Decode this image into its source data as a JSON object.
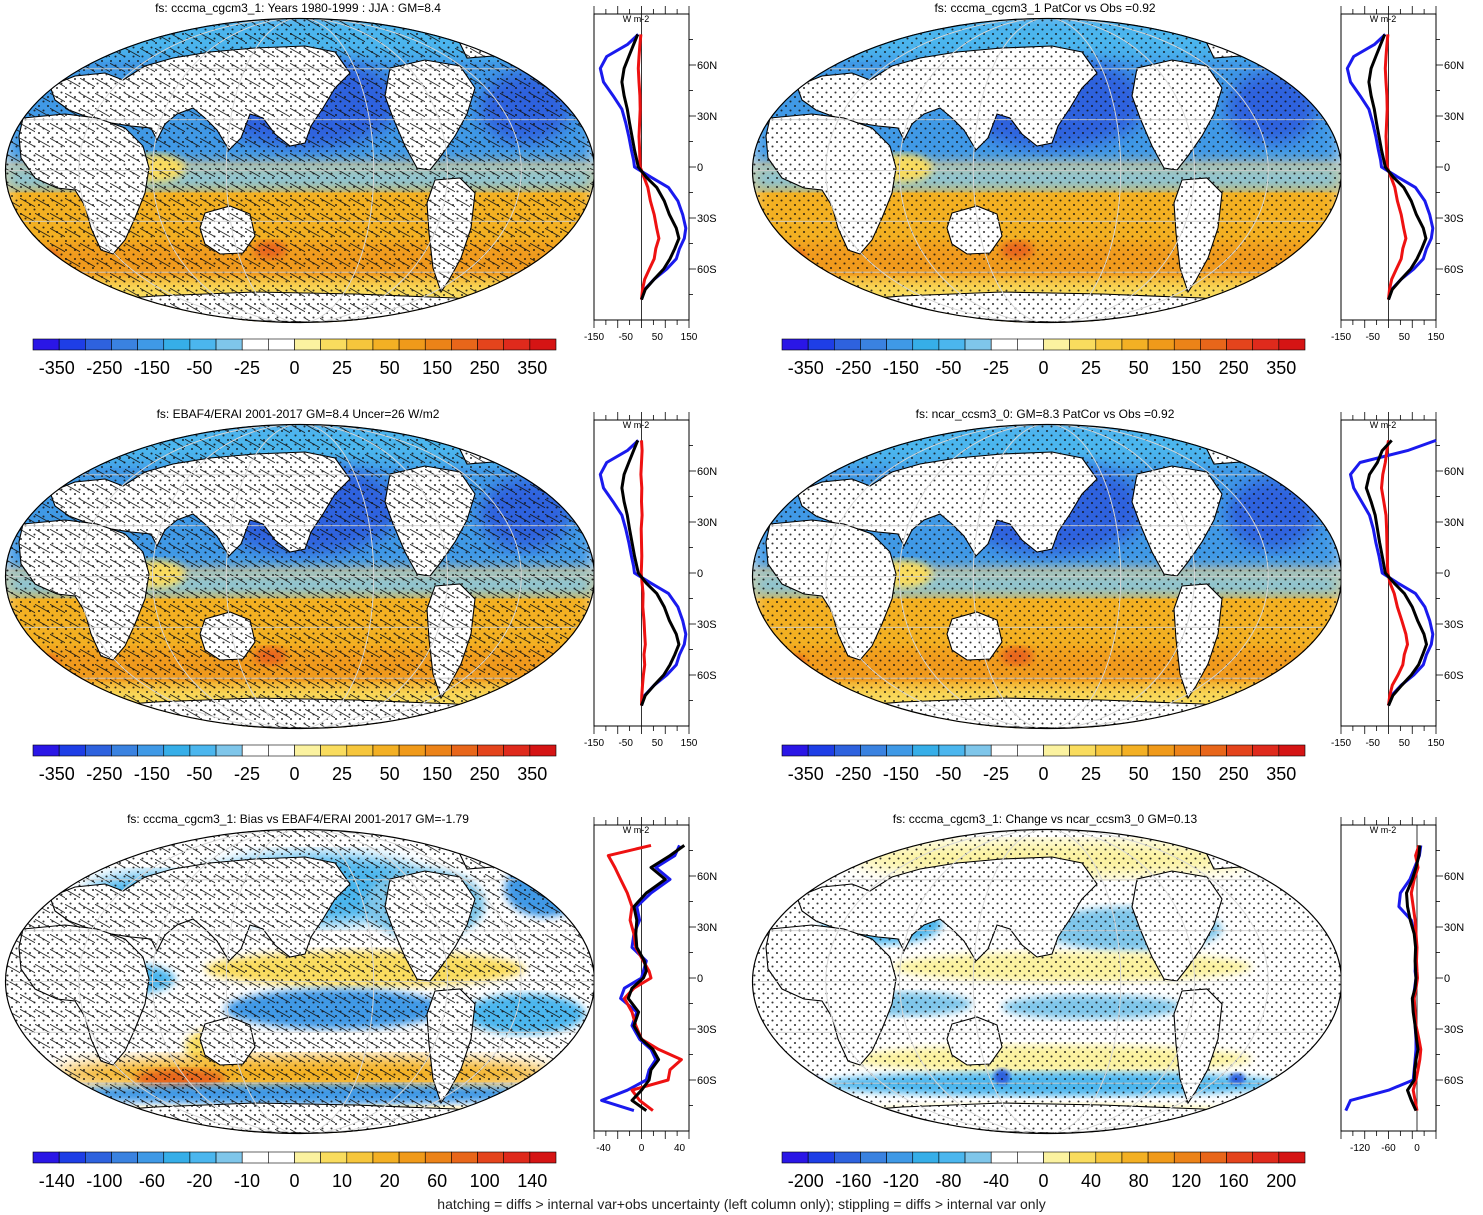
{
  "footer": "hatching = diffs > internal var+obs uncertainty (left column only); stippling = diffs > internal var only",
  "colors": {
    "zonal_obs": "#1a1aee",
    "zonal_model": "#000000",
    "zonal_diff": "#ee1111",
    "land_outline": "#000000"
  },
  "colorbars": {
    "standard": {
      "colors": [
        "#2a16e6",
        "#1e3ee6",
        "#2e62de",
        "#3a82e0",
        "#3f99e6",
        "#36aee8",
        "#4bb6ee",
        "#7fc6ea",
        "#ffffff",
        "#ffffff",
        "#fbf2a0",
        "#f9dc5e",
        "#f6c63c",
        "#f3b024",
        "#f09a1a",
        "#ec8318",
        "#e8661a",
        "#e4441c",
        "#df2a1c",
        "#d51414"
      ],
      "labels": [
        "-350",
        "-250",
        "-150",
        "-50",
        "-25",
        "0",
        "25",
        "50",
        "150",
        "250",
        "350"
      ]
    },
    "bias": {
      "colors": [
        "#2a16e6",
        "#1e3ee6",
        "#2e62de",
        "#3a82e0",
        "#3f99e6",
        "#36aee8",
        "#4bb6ee",
        "#7fc6ea",
        "#ffffff",
        "#ffffff",
        "#fbf2a0",
        "#f9dc5e",
        "#f6c63c",
        "#f3b024",
        "#f09a1a",
        "#ec8318",
        "#e8661a",
        "#e4441c",
        "#df2a1c",
        "#d51414"
      ],
      "labels": [
        "-140",
        "-100",
        "-60",
        "-20",
        "-10",
        "0",
        "10",
        "20",
        "60",
        "100",
        "140"
      ]
    },
    "change": {
      "colors": [
        "#2a16e6",
        "#1e3ee6",
        "#2e62de",
        "#3a82e0",
        "#3f99e6",
        "#36aee8",
        "#4bb6ee",
        "#7fc6ea",
        "#ffffff",
        "#ffffff",
        "#fbf2a0",
        "#f9dc5e",
        "#f6c63c",
        "#f3b024",
        "#f09a1a",
        "#ec8318",
        "#e8661a",
        "#e4441c",
        "#df2a1c",
        "#d51414"
      ],
      "labels": [
        "-200",
        "-160",
        "-120",
        "-80",
        "-40",
        "0",
        "40",
        "80",
        "120",
        "160",
        "200"
      ]
    }
  },
  "panels": [
    {
      "id": "model-climatology",
      "title": "fs: cccma_cgcm3_1: Years 1980-1999 : JJA : GM=8.4",
      "pattern": "climatology",
      "hatched": true,
      "colorbar": "standard",
      "zonal": {
        "unit": "W m-2",
        "lat_labels": [
          "60N",
          "30N",
          "0",
          "30S",
          "60S"
        ],
        "lat_values": [
          60,
          30,
          0,
          -30,
          -60
        ],
        "x_range": [
          -150,
          150
        ],
        "x_labels": [
          "-150",
          "-50",
          "50",
          "150"
        ],
        "x_label_values": [
          -150,
          -50,
          50,
          150
        ],
        "lat": [
          78,
          72,
          65,
          58,
          50,
          42,
          34,
          26,
          18,
          10,
          4,
          0,
          -6,
          -12,
          -20,
          -28,
          -36,
          -42,
          -48,
          -54,
          -60,
          -66,
          -72,
          -78
        ],
        "obs": [
          -10,
          -45,
          -110,
          -130,
          -120,
          -90,
          -62,
          -50,
          -40,
          -32,
          -25,
          -22,
          30,
          85,
          115,
          130,
          140,
          135,
          120,
          110,
          80,
          40,
          10,
          0
        ],
        "model": [
          -12,
          -25,
          -40,
          -55,
          -62,
          -55,
          -45,
          -38,
          -30,
          -22,
          -15,
          -10,
          15,
          48,
          72,
          88,
          110,
          118,
          105,
          90,
          70,
          40,
          12,
          0
        ],
        "diff": [
          -2,
          -5,
          -8,
          -10,
          -8,
          -5,
          -4,
          -6,
          -8,
          -6,
          -5,
          -4,
          8,
          20,
          28,
          40,
          48,
          55,
          45,
          40,
          25,
          10,
          3,
          0
        ]
      }
    },
    {
      "id": "model-patcor",
      "title": "fs: cccma_cgcm3_1 PatCor vs Obs =0.92",
      "pattern": "climatology",
      "hatched": false,
      "colorbar": "standard",
      "zonal": {
        "unit": "W m-2",
        "lat_labels": [
          "60N",
          "30N",
          "0",
          "30S",
          "60S"
        ],
        "lat_values": [
          60,
          30,
          0,
          -30,
          -60
        ],
        "x_range": [
          -150,
          150
        ],
        "x_labels": [
          "-150",
          "-50",
          "50",
          "150"
        ],
        "x_label_values": [
          -150,
          -50,
          50,
          150
        ],
        "lat": [
          78,
          72,
          65,
          58,
          50,
          42,
          34,
          26,
          18,
          10,
          4,
          0,
          -6,
          -12,
          -20,
          -28,
          -36,
          -42,
          -48,
          -54,
          -60,
          -66,
          -72,
          -78
        ],
        "obs": [
          -10,
          -45,
          -110,
          -130,
          -120,
          -90,
          -62,
          -50,
          -40,
          -32,
          -25,
          -22,
          30,
          85,
          115,
          130,
          140,
          135,
          120,
          110,
          80,
          40,
          10,
          0
        ],
        "model": [
          -12,
          -25,
          -40,
          -55,
          -62,
          -55,
          -45,
          -38,
          -30,
          -22,
          -15,
          -10,
          15,
          48,
          72,
          88,
          110,
          118,
          105,
          90,
          70,
          40,
          12,
          0
        ],
        "diff": [
          -2,
          -5,
          -8,
          -10,
          -8,
          -5,
          -4,
          -6,
          -8,
          -6,
          -5,
          -4,
          8,
          20,
          28,
          40,
          48,
          55,
          45,
          40,
          25,
          10,
          3,
          0
        ]
      }
    },
    {
      "id": "obs-climatology",
      "title": "fs: EBAF4/ERAI 2001-2017 GM=8.4 Uncer=26 W/m2",
      "pattern": "climatology",
      "hatched": true,
      "colorbar": "standard",
      "zonal": {
        "unit": "W m-2",
        "lat_labels": [
          "60N",
          "30N",
          "0",
          "30S",
          "60S"
        ],
        "lat_values": [
          60,
          30,
          0,
          -30,
          -60
        ],
        "x_range": [
          -150,
          150
        ],
        "x_labels": [
          "-150",
          "-50",
          "50",
          "150"
        ],
        "x_label_values": [
          -150,
          -50,
          50,
          150
        ],
        "lat": [
          78,
          72,
          65,
          58,
          50,
          42,
          34,
          26,
          18,
          10,
          4,
          0,
          -6,
          -12,
          -20,
          -28,
          -36,
          -42,
          -48,
          -54,
          -60,
          -66,
          -72,
          -78
        ],
        "obs": [
          -10,
          -45,
          -110,
          -130,
          -120,
          -90,
          -62,
          -50,
          -40,
          -32,
          -25,
          -22,
          30,
          85,
          115,
          130,
          140,
          135,
          120,
          110,
          80,
          40,
          10,
          0
        ],
        "model": [
          -12,
          -25,
          -40,
          -55,
          -62,
          -55,
          -45,
          -38,
          -30,
          -22,
          -15,
          -10,
          15,
          48,
          72,
          88,
          110,
          118,
          105,
          90,
          70,
          40,
          12,
          0
        ],
        "diff": [
          0,
          2,
          0,
          -2,
          1,
          0,
          2,
          -1,
          0,
          1,
          0,
          -1,
          2,
          5,
          4,
          8,
          10,
          12,
          8,
          10,
          6,
          3,
          1,
          0
        ]
      }
    },
    {
      "id": "ncar-climatology",
      "title": "fs: ncar_ccsm3_0: GM=8.3 PatCor vs Obs =0.92",
      "pattern": "climatology",
      "hatched": false,
      "colorbar": "standard",
      "zonal": {
        "unit": "W m-2",
        "lat_labels": [
          "60N",
          "30N",
          "0",
          "30S",
          "60S"
        ],
        "lat_values": [
          60,
          30,
          0,
          -30,
          -60
        ],
        "x_range": [
          -150,
          150
        ],
        "x_labels": [
          "-150",
          "-50",
          "50",
          "150"
        ],
        "x_label_values": [
          -150,
          -50,
          50,
          150
        ],
        "lat": [
          78,
          72,
          65,
          58,
          50,
          42,
          34,
          26,
          18,
          10,
          4,
          0,
          -6,
          -12,
          -20,
          -28,
          -36,
          -42,
          -48,
          -54,
          -60,
          -66,
          -72,
          -78
        ],
        "obs": [
          150,
          60,
          -90,
          -120,
          -110,
          -85,
          -60,
          -48,
          -40,
          -30,
          -24,
          -20,
          30,
          85,
          115,
          130,
          140,
          135,
          120,
          110,
          80,
          40,
          10,
          0
        ],
        "model": [
          10,
          -20,
          -35,
          -60,
          -70,
          -55,
          -42,
          -35,
          -28,
          -20,
          -14,
          -10,
          18,
          50,
          75,
          92,
          112,
          120,
          108,
          95,
          72,
          42,
          14,
          0
        ],
        "diff": [
          0,
          -5,
          -10,
          -18,
          -22,
          -15,
          -8,
          -6,
          -5,
          -4,
          -3,
          -2,
          5,
          18,
          28,
          42,
          55,
          60,
          50,
          45,
          30,
          12,
          4,
          0
        ]
      }
    },
    {
      "id": "bias",
      "title": "fs: cccma_cgcm3_1: Bias vs EBAF4/ERAI 2001-2017 GM=-1.79",
      "pattern": "bias",
      "hatched": true,
      "colorbar": "bias",
      "zonal": {
        "unit": "W m-2",
        "lat_labels": [
          "60N",
          "30N",
          "0",
          "30S",
          "60S"
        ],
        "lat_values": [
          60,
          30,
          0,
          -30,
          -60
        ],
        "x_range": [
          -50,
          50
        ],
        "x_labels": [
          "-40",
          "0",
          "40"
        ],
        "x_label_values": [
          -40,
          0,
          40
        ],
        "lat": [
          78,
          72,
          65,
          58,
          50,
          42,
          34,
          26,
          18,
          10,
          4,
          0,
          -6,
          -12,
          -20,
          -28,
          -36,
          -42,
          -48,
          -54,
          -60,
          -66,
          -72,
          -78
        ],
        "obs": [
          40,
          35,
          15,
          30,
          10,
          -5,
          -2,
          -8,
          -10,
          5,
          2,
          0,
          -18,
          -22,
          -5,
          -10,
          -2,
          10,
          15,
          8,
          5,
          -15,
          -42,
          -8
        ],
        "model": [
          45,
          30,
          10,
          25,
          5,
          -8,
          -5,
          -6,
          -5,
          3,
          5,
          2,
          -10,
          -14,
          -3,
          -8,
          0,
          12,
          18,
          10,
          8,
          0,
          -10,
          5
        ],
        "diff": [
          10,
          -35,
          -28,
          -22,
          -15,
          -10,
          -12,
          -8,
          -6,
          2,
          8,
          10,
          -8,
          -18,
          -10,
          -6,
          0,
          18,
          42,
          30,
          28,
          -10,
          -2,
          12
        ]
      }
    },
    {
      "id": "change",
      "title": "fs: cccma_cgcm3_1: Change vs ncar_ccsm3_0 GM=0.13",
      "pattern": "change",
      "hatched": false,
      "colorbar": "change",
      "zonal": {
        "unit": "W m-2",
        "lat_labels": [
          "60N",
          "30N",
          "0",
          "30S",
          "60S"
        ],
        "lat_values": [
          60,
          30,
          0,
          -30,
          -60
        ],
        "x_range": [
          -160,
          40
        ],
        "x_labels": [
          "-120",
          "-60",
          "0"
        ],
        "x_label_values": [
          -120,
          -60,
          0
        ],
        "lat": [
          78,
          72,
          65,
          58,
          50,
          42,
          34,
          26,
          18,
          10,
          4,
          0,
          -6,
          -12,
          -20,
          -28,
          -36,
          -42,
          -48,
          -54,
          -60,
          -66,
          -72,
          -78
        ],
        "obs": [
          8,
          5,
          -5,
          -15,
          -35,
          -38,
          -12,
          -5,
          -2,
          -3,
          -4,
          -2,
          -5,
          -8,
          -6,
          -4,
          -2,
          -2,
          -4,
          -6,
          -8,
          -60,
          -140,
          -150
        ],
        "model": [
          6,
          4,
          -2,
          -10,
          -22,
          -20,
          -14,
          -6,
          -3,
          -4,
          -3,
          -2,
          -4,
          -10,
          -8,
          -4,
          -1,
          2,
          -2,
          -5,
          -6,
          -20,
          -12,
          -2
        ],
        "diff": [
          4,
          -3,
          2,
          -6,
          -12,
          -8,
          -4,
          -2,
          0,
          -1,
          0,
          1,
          -2,
          -6,
          -4,
          -2,
          4,
          8,
          6,
          2,
          -2,
          -8,
          -4,
          0
        ]
      }
    }
  ]
}
